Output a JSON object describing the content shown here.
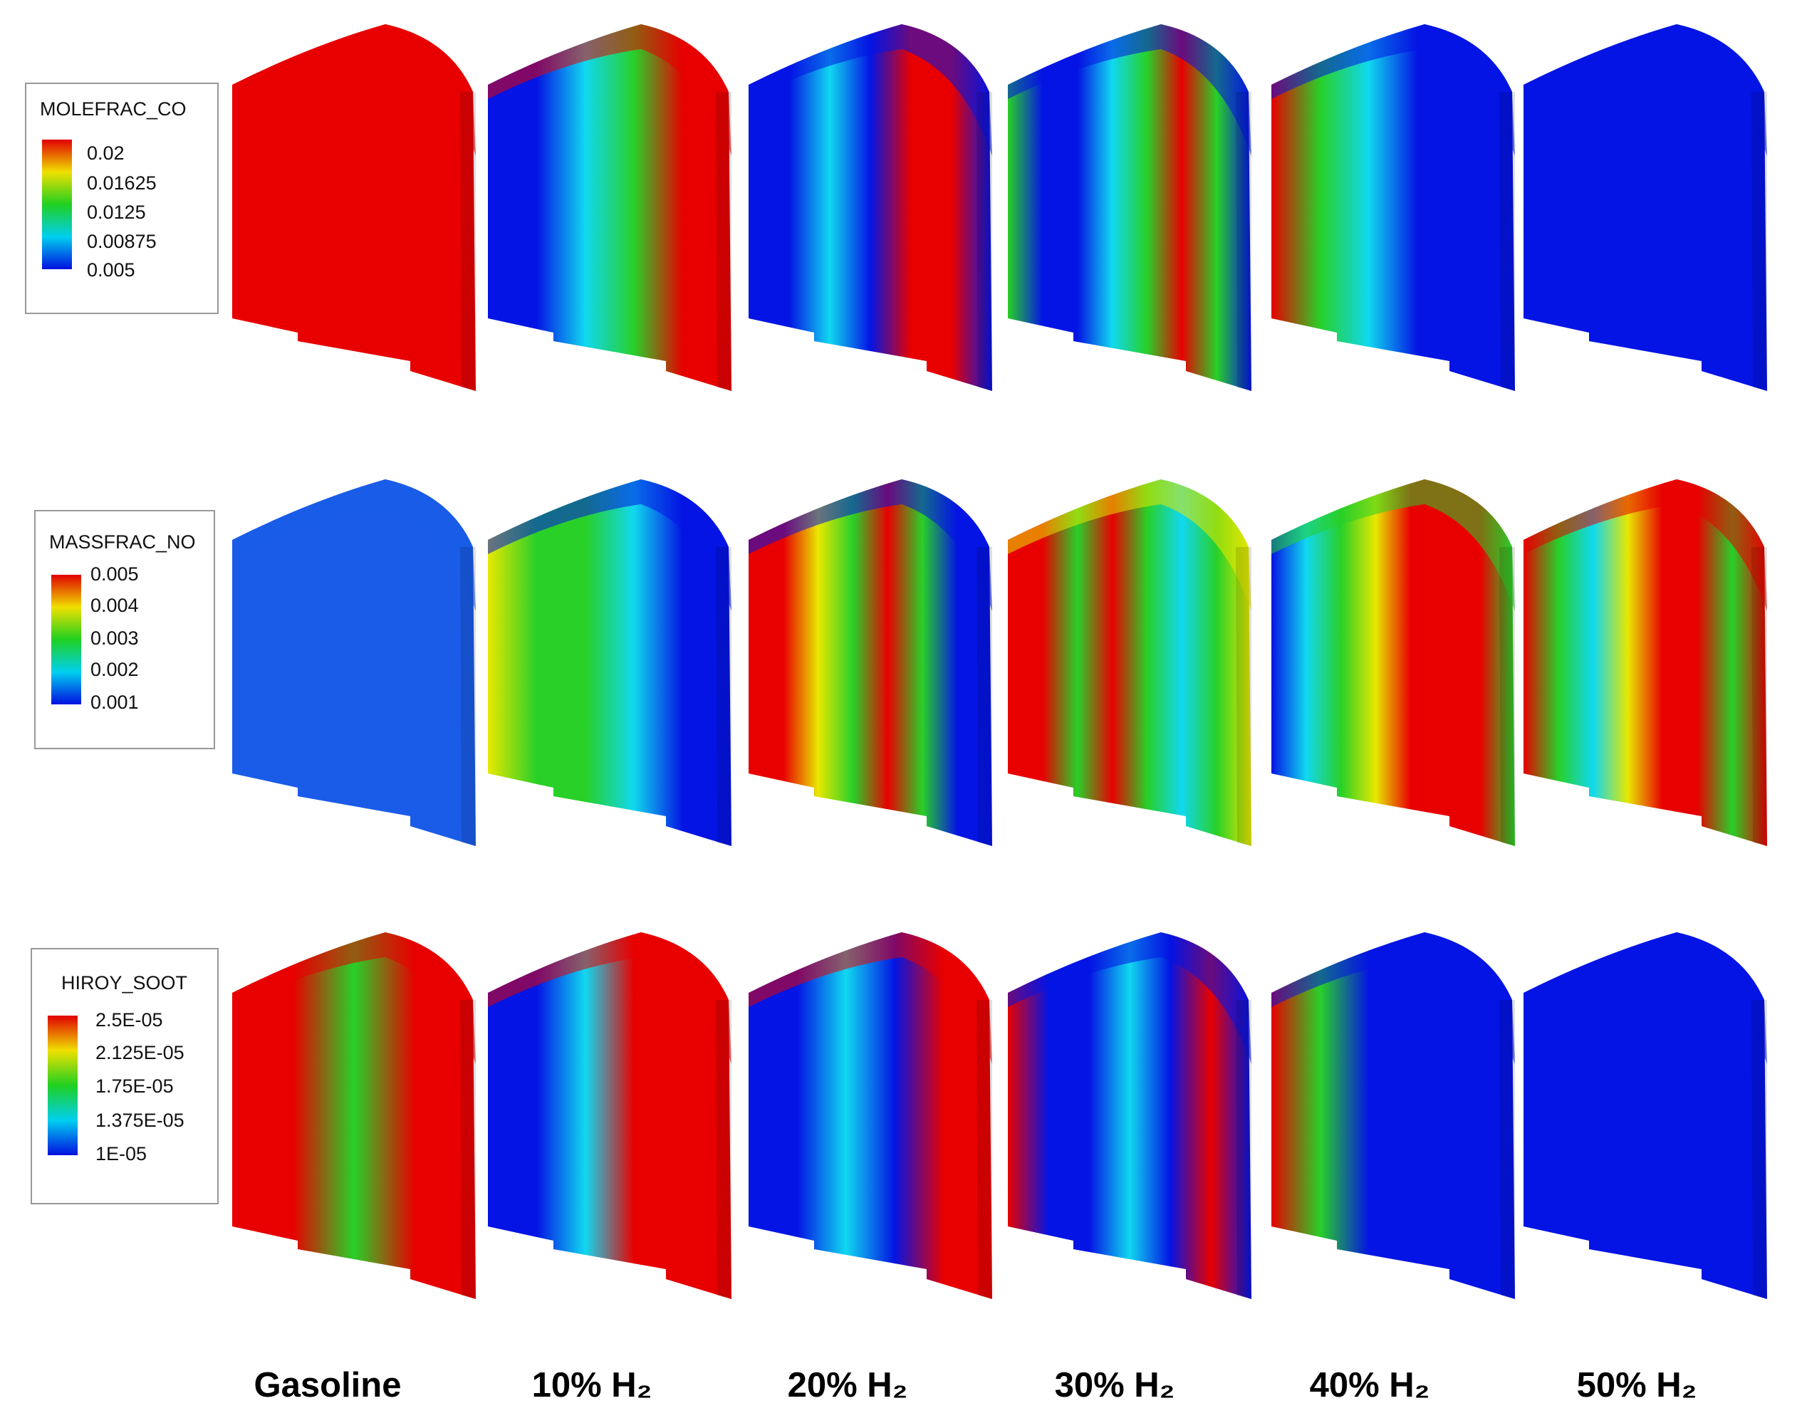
{
  "legends": [
    {
      "title": "MOLEFRAC_CO",
      "labels": [
        "0.02",
        "0.01625",
        "0.0125",
        "0.00875",
        "0.005"
      ]
    },
    {
      "title": "MASSFRAC_NO",
      "labels": [
        "0.005",
        "0.004",
        "0.003",
        "0.002",
        "0.001"
      ]
    },
    {
      "title": "HIROY_SOOT",
      "labels": [
        "2.5E-05",
        "2.125E-05",
        "1.75E-05",
        "1.375E-05",
        "1E-05"
      ]
    }
  ],
  "columns": [
    "Gasoline",
    "10% H₂",
    "20% H₂",
    "30% H₂",
    "40% H₂",
    "50% H₂"
  ]
}
